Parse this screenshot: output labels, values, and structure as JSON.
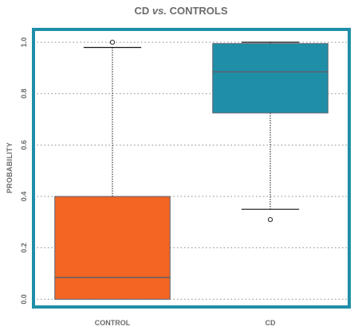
{
  "chart_data": {
    "type": "box",
    "title_parts": [
      "CD ",
      "vs.",
      " CONTROLS"
    ],
    "xlabel": "",
    "ylabel": "PROBABILITY",
    "ylim": [
      -0.03,
      1.05
    ],
    "yticks": [
      "0.0",
      "0.2",
      "0.4",
      "0.6",
      "0.8",
      "1.0"
    ],
    "ytick_values": [
      0.0,
      0.2,
      0.4,
      0.6,
      0.8,
      1.0
    ],
    "grid": true,
    "categories": [
      "CONTROL",
      "CD"
    ],
    "boxes": [
      {
        "category": "CONTROL",
        "whisker_low": 0.0,
        "q1": 0.0,
        "median": 0.085,
        "q3": 0.4,
        "whisker_high": 0.98,
        "outliers": [
          1.0
        ]
      },
      {
        "category": "CD",
        "whisker_low": 0.35,
        "q1": 0.725,
        "median": 0.885,
        "q3": 0.995,
        "whisker_high": 1.0,
        "outliers": [
          0.31
        ]
      }
    ]
  },
  "colors": {
    "frame": "#1f8fa8",
    "control_box": "#f26522",
    "cd_box": "#1f8fa8",
    "median_line": "#5a6270",
    "text": "#6b6b6b",
    "grid": "#8a8a8a"
  }
}
